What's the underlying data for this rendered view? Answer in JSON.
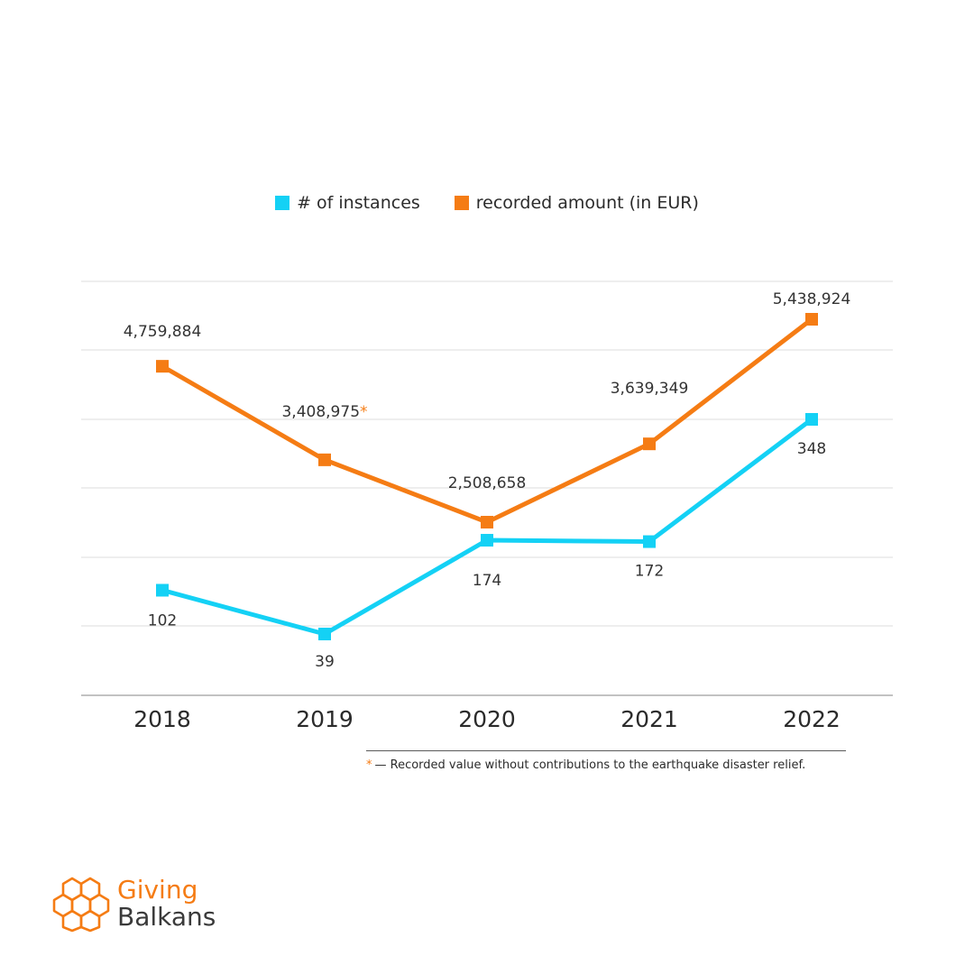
{
  "legend": {
    "instances_label": "# of instances",
    "amount_label": "recorded amount (in EUR)"
  },
  "colors": {
    "instances": "#14d1f5",
    "amount": "#f57c14",
    "grid": "#dcdcdc",
    "axis": "#9e9e9e"
  },
  "chart_data": {
    "type": "line",
    "categories": [
      "2018",
      "2019",
      "2020",
      "2021",
      "2022"
    ],
    "series": [
      {
        "name": "# of instances",
        "values": [
          102,
          39,
          174,
          172,
          348
        ],
        "labels": [
          "102",
          "39",
          "174",
          "172",
          "348"
        ]
      },
      {
        "name": "recorded amount (in EUR)",
        "values": [
          4759884,
          3408975,
          2508658,
          3639349,
          5438924
        ],
        "labels": [
          "4,759,884",
          "3,408,975",
          "2,508,658",
          "3,639,349",
          "5,438,924"
        ],
        "annotated_index": 1
      }
    ],
    "grid": true,
    "legend_position": "top-center"
  },
  "footnote": {
    "marker": "*",
    "text": "— Recorded value without contributions to the earthquake disaster relief."
  },
  "logo": {
    "line1": "Giving",
    "line2": "Balkans",
    "icon": "honeycomb-logo-icon"
  }
}
